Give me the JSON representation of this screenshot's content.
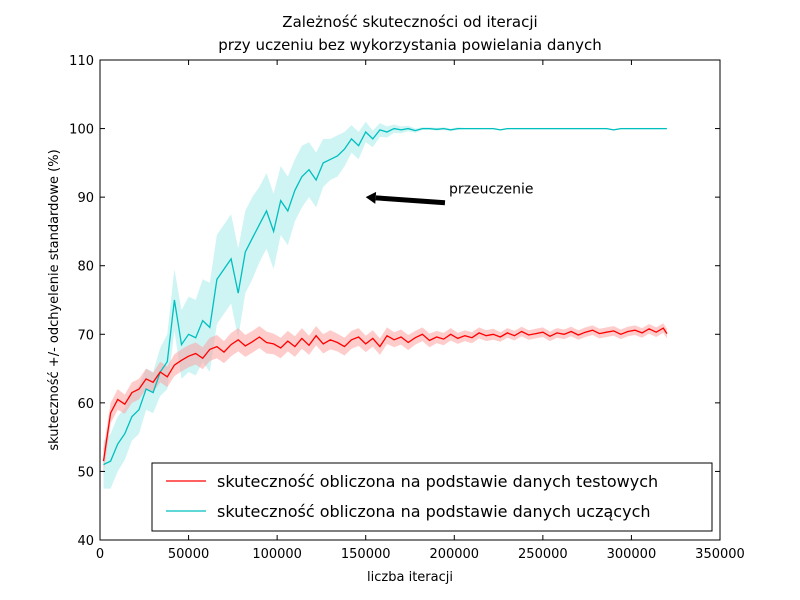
{
  "chart_data": {
    "type": "line",
    "title": "Zależność skuteczności od iteracji\nprzy uczeniu bez wykorzystania powielania danych",
    "title_lines": [
      "Zależność skuteczności od iteracji",
      "przy uczeniu bez wykorzystania powielania danych"
    ],
    "xlabel": "liczba iteracji",
    "ylabel": "skuteczność +/- odchyelenie standardowe (%)",
    "xlim": [
      0,
      350000
    ],
    "ylim": [
      40,
      110
    ],
    "xticks": [
      0,
      50000,
      100000,
      150000,
      200000,
      250000,
      300000,
      350000
    ],
    "xtick_labels": [
      "0",
      "50000",
      "100000",
      "150000",
      "200000",
      "250000",
      "300000",
      "350000"
    ],
    "yticks": [
      40,
      50,
      60,
      70,
      80,
      90,
      100,
      110
    ],
    "ytick_labels": [
      "40",
      "50",
      "60",
      "70",
      "80",
      "90",
      "100",
      "110"
    ],
    "grid": false,
    "legend_position": "lower-right",
    "annotation": {
      "text": "przeuczenie",
      "x": 150000,
      "y": 90,
      "text_x": 197000,
      "text_y": 90.5
    },
    "series": [
      {
        "name": "skuteczność obliczona na podstawie danych testowych",
        "color": "#ff0000",
        "band_color": "#ff9999",
        "x": [
          2000,
          6000,
          10000,
          14000,
          18000,
          22000,
          26000,
          30000,
          34000,
          38000,
          42000,
          46000,
          50000,
          54000,
          58000,
          62000,
          66000,
          70000,
          74000,
          78000,
          82000,
          86000,
          90000,
          94000,
          98000,
          102000,
          106000,
          110000,
          114000,
          118000,
          122000,
          126000,
          130000,
          134000,
          138000,
          142000,
          146000,
          150000,
          154000,
          158000,
          162000,
          166000,
          170000,
          174000,
          178000,
          182000,
          186000,
          190000,
          194000,
          198000,
          202000,
          206000,
          210000,
          214000,
          218000,
          222000,
          226000,
          230000,
          234000,
          238000,
          242000,
          246000,
          250000,
          254000,
          258000,
          262000,
          266000,
          270000,
          274000,
          278000,
          282000,
          286000,
          290000,
          294000,
          298000,
          302000,
          306000,
          310000,
          314000,
          318000,
          320000
        ],
        "y": [
          51.5,
          58.5,
          60.5,
          59.8,
          61.5,
          62.0,
          63.5,
          63.0,
          64.5,
          63.8,
          65.5,
          66.2,
          66.8,
          67.2,
          66.5,
          67.8,
          68.2,
          67.4,
          68.5,
          69.2,
          68.3,
          68.9,
          69.6,
          68.8,
          68.6,
          68.0,
          69.0,
          68.2,
          69.4,
          68.4,
          69.8,
          68.6,
          69.2,
          68.8,
          68.2,
          69.2,
          69.6,
          68.6,
          69.4,
          68.2,
          69.8,
          69.2,
          69.6,
          68.8,
          69.5,
          70.0,
          69.1,
          69.6,
          69.3,
          70.0,
          69.4,
          69.8,
          69.5,
          70.2,
          69.8,
          70.0,
          69.6,
          70.2,
          69.8,
          70.4,
          69.9,
          70.1,
          70.3,
          69.7,
          70.2,
          70.0,
          70.4,
          69.9,
          70.3,
          70.6,
          70.1,
          70.3,
          70.5,
          70.0,
          70.4,
          70.6,
          70.2,
          70.8,
          70.3,
          70.9,
          70.1
        ],
        "std": [
          1.8,
          1.5,
          1.5,
          1.4,
          1.5,
          1.5,
          1.5,
          1.4,
          1.5,
          1.5,
          1.6,
          1.6,
          1.6,
          1.6,
          1.6,
          1.7,
          1.7,
          1.6,
          1.7,
          1.7,
          1.6,
          1.6,
          1.6,
          1.6,
          1.5,
          1.5,
          1.5,
          1.5,
          1.5,
          1.4,
          1.4,
          1.4,
          1.4,
          1.3,
          1.3,
          1.3,
          1.3,
          1.2,
          1.2,
          1.2,
          1.2,
          1.1,
          1.1,
          1.1,
          1.0,
          1.0,
          1.0,
          0.9,
          0.9,
          0.9,
          0.8,
          0.8,
          0.8,
          0.8,
          0.8,
          0.8,
          0.7,
          0.7,
          0.7,
          0.7,
          0.7,
          0.7,
          0.7,
          0.7,
          0.7,
          0.7,
          0.7,
          0.7,
          0.7,
          0.7,
          0.7,
          0.7,
          0.7,
          0.7,
          0.7,
          0.7,
          0.7,
          0.7,
          0.7,
          0.7,
          0.7
        ]
      },
      {
        "name": "skuteczność obliczona na podstawie danych uczących",
        "color": "#00bfbf",
        "band_color": "#9eeaea",
        "x": [
          2000,
          6000,
          10000,
          14000,
          18000,
          22000,
          26000,
          30000,
          34000,
          38000,
          42000,
          46000,
          50000,
          54000,
          58000,
          62000,
          66000,
          70000,
          74000,
          78000,
          82000,
          86000,
          90000,
          94000,
          98000,
          102000,
          106000,
          110000,
          114000,
          118000,
          122000,
          126000,
          130000,
          134000,
          138000,
          142000,
          146000,
          150000,
          154000,
          158000,
          162000,
          166000,
          170000,
          174000,
          178000,
          182000,
          186000,
          190000,
          194000,
          198000,
          202000,
          206000,
          210000,
          214000,
          218000,
          222000,
          226000,
          230000,
          234000,
          238000,
          242000,
          246000,
          250000,
          254000,
          258000,
          262000,
          266000,
          270000,
          274000,
          278000,
          282000,
          286000,
          290000,
          294000,
          298000,
          302000,
          306000,
          310000,
          314000,
          318000,
          320000
        ],
        "y": [
          51.0,
          51.5,
          54.0,
          55.5,
          58.0,
          59.0,
          62.0,
          61.5,
          64.5,
          66.0,
          75.0,
          68.5,
          70.0,
          69.5,
          72.0,
          71.0,
          78.0,
          79.5,
          81.0,
          76.0,
          82.0,
          84.0,
          86.0,
          88.0,
          85.0,
          89.5,
          88.0,
          91.0,
          93.0,
          94.0,
          92.5,
          95.0,
          95.5,
          96.0,
          97.0,
          98.5,
          97.5,
          99.5,
          98.5,
          99.8,
          99.5,
          100.0,
          99.8,
          100.0,
          99.7,
          100.0,
          100.0,
          99.9,
          100.0,
          99.8,
          100.0,
          100.0,
          100.0,
          100.0,
          100.0,
          100.0,
          99.8,
          100.0,
          100.0,
          100.0,
          100.0,
          100.0,
          100.0,
          100.0,
          100.0,
          100.0,
          100.0,
          100.0,
          100.0,
          100.0,
          100.0,
          100.0,
          99.8,
          100.0,
          100.0,
          100.0,
          100.0,
          100.0,
          100.0,
          100.0,
          100.0
        ],
        "std": [
          3.5,
          4.0,
          4.0,
          3.8,
          3.5,
          3.5,
          3.0,
          3.0,
          3.5,
          4.0,
          4.5,
          5.0,
          5.5,
          5.5,
          6.0,
          6.5,
          6.5,
          6.5,
          6.5,
          6.5,
          6.0,
          6.0,
          5.5,
          5.5,
          5.5,
          5.0,
          5.0,
          4.5,
          4.5,
          4.0,
          4.0,
          3.5,
          3.0,
          3.0,
          2.5,
          2.0,
          2.0,
          1.5,
          1.2,
          1.0,
          0.8,
          0.6,
          0.5,
          0.4,
          0.3,
          0.2,
          0.2,
          0.2,
          0.2,
          0.2,
          0.2,
          0.1,
          0.1,
          0.1,
          0.1,
          0.1,
          0.1,
          0.1,
          0.1,
          0.1,
          0.1,
          0.1,
          0.1,
          0.1,
          0.1,
          0.1,
          0.1,
          0.1,
          0.1,
          0.1,
          0.1,
          0.1,
          0.1,
          0.1,
          0.1,
          0.1,
          0.1,
          0.1,
          0.1,
          0.1,
          0.1
        ]
      }
    ]
  }
}
